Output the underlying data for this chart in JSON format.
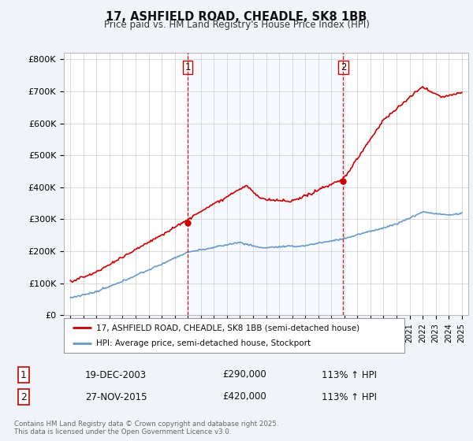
{
  "title": "17, ASHFIELD ROAD, CHEADLE, SK8 1BB",
  "subtitle": "Price paid vs. HM Land Registry's House Price Index (HPI)",
  "background_color": "#f0f4f8",
  "plot_bg_color": "#ffffff",
  "red_color": "#cc0000",
  "blue_color": "#6699cc",
  "shade_color": "#ddeeff",
  "marker1_x": 2004.0,
  "marker1_y": 290000,
  "marker2_x": 2015.92,
  "marker2_y": 420000,
  "ylim": [
    0,
    820000
  ],
  "xlim": [
    1994.5,
    2025.5
  ],
  "yticks": [
    0,
    100000,
    200000,
    300000,
    400000,
    500000,
    600000,
    700000,
    800000
  ],
  "ytick_labels": [
    "£0",
    "£100K",
    "£200K",
    "£300K",
    "£400K",
    "£500K",
    "£600K",
    "£700K",
    "£800K"
  ],
  "legend_red_label": "17, ASHFIELD ROAD, CHEADLE, SK8 1BB (semi-detached house)",
  "legend_blue_label": "HPI: Average price, semi-detached house, Stockport",
  "annotation1_date": "19-DEC-2003",
  "annotation1_price": "£290,000",
  "annotation1_hpi": "113% ↑ HPI",
  "annotation2_date": "27-NOV-2015",
  "annotation2_price": "£420,000",
  "annotation2_hpi": "113% ↑ HPI",
  "footer": "Contains HM Land Registry data © Crown copyright and database right 2025.\nThis data is licensed under the Open Government Licence v3.0."
}
